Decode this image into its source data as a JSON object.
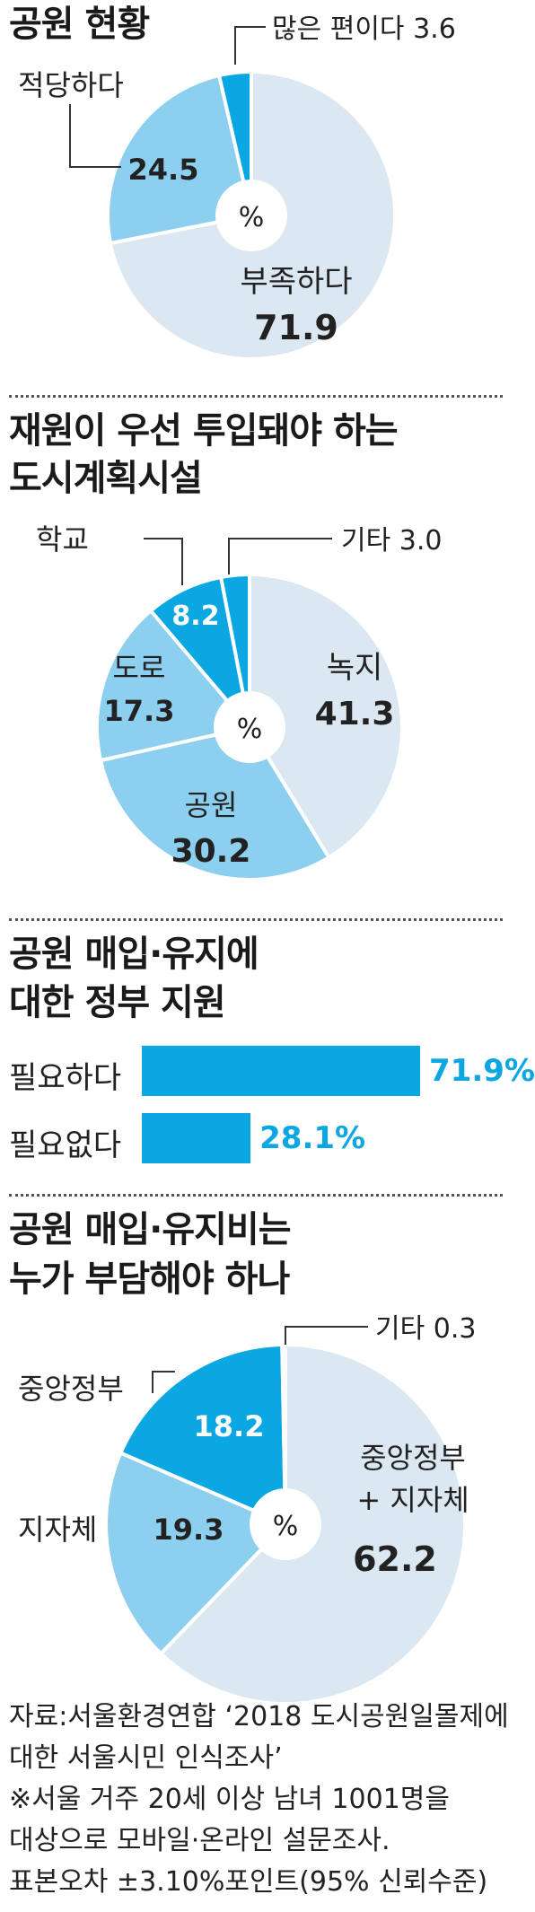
{
  "chart_data": [
    {
      "type": "pie",
      "title": "공원 현황",
      "center_label": "%",
      "slices": [
        {
          "label": "부족하다",
          "value": 71.9,
          "color": "#dbe8f2"
        },
        {
          "label": "적당하다",
          "value": 24.5,
          "color": "#8dcfee"
        },
        {
          "label": "많은 편이다",
          "value": 3.6,
          "color": "#0aa7e2"
        }
      ],
      "labels": {
        "major": {
          "name": "부족하다",
          "value": "71.9"
        },
        "mid": {
          "name": "적당하다",
          "value": "24.5"
        },
        "small": {
          "text": "많은 편이다 3.6"
        }
      }
    },
    {
      "type": "pie",
      "title_line1": "재원이 우선 투입돼야 하는",
      "title_line2": "도시계획시설",
      "center_label": "%",
      "slices": [
        {
          "label": "녹지",
          "value": 41.3,
          "color": "#dbe8f2"
        },
        {
          "label": "공원",
          "value": 30.2,
          "color": "#8dcfee"
        },
        {
          "label": "도로",
          "value": 17.3,
          "color": "#8dcfee"
        },
        {
          "label": "학교",
          "value": 8.2,
          "color": "#0aa7e2"
        },
        {
          "label": "기타",
          "value": 3.0,
          "color": "#0aa7e2"
        }
      ],
      "labels": {
        "greenery": {
          "name": "녹지",
          "value": "41.3"
        },
        "park": {
          "name": "공원",
          "value": "30.2"
        },
        "road": {
          "name": "도로",
          "value": "17.3"
        },
        "school": {
          "name": "학교",
          "value": "8.2"
        },
        "other": {
          "text": "기타 3.0"
        }
      }
    },
    {
      "type": "bar",
      "title_line1": "공원 매입·유지에",
      "title_line2": "대한 정부 지원",
      "categories": [
        "필요하다",
        "필요없다"
      ],
      "values": [
        71.9,
        28.1
      ],
      "value_labels": [
        "71.9%",
        "28.1%"
      ],
      "color": "#0aa7e2"
    },
    {
      "type": "pie",
      "title_line1": "공원 매입·유지비는",
      "title_line2": "누가 부담해야 하나",
      "center_label": "%",
      "slices": [
        {
          "label": "중앙정부 + 지자체",
          "value": 62.2,
          "color": "#dbe8f2"
        },
        {
          "label": "지자체",
          "value": 19.3,
          "color": "#8dcfee"
        },
        {
          "label": "중앙정부",
          "value": 18.2,
          "color": "#0aa7e2"
        },
        {
          "label": "기타",
          "value": 0.3,
          "color": "#1a1a1a"
        }
      ],
      "labels": {
        "both_line1": "중앙정부",
        "both_line2": "+ 지자체",
        "both_value": "62.2",
        "local_name": "지자체",
        "local_value": "19.3",
        "central_name": "중앙정부",
        "central_value": "18.2",
        "other": {
          "text": "기타 0.3"
        }
      }
    }
  ],
  "source": {
    "line1": "자료:서울환경연합 ‘2018 도시공원일몰제에",
    "line2": "대한 서울시민 인식조사’",
    "line3": "※서울 거주 20세 이상 남녀 1001명을",
    "line4": "대상으로 모바일·온라인 설문조사.",
    "line5": "표본오차 ±3.10%포인트(95% 신뢰수준)"
  }
}
